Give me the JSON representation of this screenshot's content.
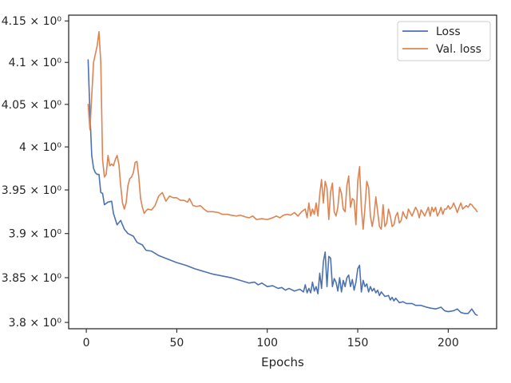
{
  "chart_data": {
    "type": "line",
    "xlabel": "Epochs",
    "ylabel": "",
    "yscale": "log",
    "xlim": [
      -9.75,
      226.75
    ],
    "ylim": [
      3.793,
      4.157
    ],
    "xticks": [
      {
        "value": 0,
        "label": "0"
      },
      {
        "value": 50,
        "label": "50"
      },
      {
        "value": 100,
        "label": "100"
      },
      {
        "value": 150,
        "label": "150"
      },
      {
        "value": 200,
        "label": "200"
      }
    ],
    "yticks": [
      {
        "value": 3.8,
        "label": "3.8 × 10⁰"
      },
      {
        "value": 3.85,
        "label": "3.85 × 10⁰"
      },
      {
        "value": 3.9,
        "label": "3.9 × 10⁰"
      },
      {
        "value": 3.95,
        "label": "3.95 × 10⁰"
      },
      {
        "value": 4.0,
        "label": "4 × 10⁰"
      },
      {
        "value": 4.05,
        "label": "4.05 × 10⁰"
      },
      {
        "value": 4.1,
        "label": "4.1 × 10⁰"
      },
      {
        "value": 4.15,
        "label": "4.15 × 10⁰"
      }
    ],
    "grid": false,
    "legend_position": "top-right",
    "series": [
      {
        "name": "Loss",
        "color": "#4c72b0",
        "points": [
          [
            1,
            4.103
          ],
          [
            2,
            4.04
          ],
          [
            3,
            3.99
          ],
          [
            4,
            3.975
          ],
          [
            5,
            3.97
          ],
          [
            6,
            3.968
          ],
          [
            7,
            3.968
          ],
          [
            8,
            3.947
          ],
          [
            9,
            3.946
          ],
          [
            10,
            3.933
          ],
          [
            12,
            3.936
          ],
          [
            14,
            3.937
          ],
          [
            15,
            3.923
          ],
          [
            17,
            3.91
          ],
          [
            19,
            3.915
          ],
          [
            21,
            3.905
          ],
          [
            23,
            3.9
          ],
          [
            26,
            3.897
          ],
          [
            28,
            3.89
          ],
          [
            31,
            3.887
          ],
          [
            33,
            3.881
          ],
          [
            36,
            3.88
          ],
          [
            40,
            3.875
          ],
          [
            45,
            3.871
          ],
          [
            50,
            3.867
          ],
          [
            55,
            3.864
          ],
          [
            60,
            3.86
          ],
          [
            65,
            3.857
          ],
          [
            70,
            3.854
          ],
          [
            75,
            3.852
          ],
          [
            80,
            3.85
          ],
          [
            85,
            3.847
          ],
          [
            90,
            3.844
          ],
          [
            93,
            3.845
          ],
          [
            95,
            3.842
          ],
          [
            97,
            3.844
          ],
          [
            100,
            3.84
          ],
          [
            103,
            3.841
          ],
          [
            106,
            3.838
          ],
          [
            108,
            3.839
          ],
          [
            110,
            3.836
          ],
          [
            112,
            3.838
          ],
          [
            115,
            3.835
          ],
          [
            118,
            3.837
          ],
          [
            120,
            3.834
          ],
          [
            121,
            3.842
          ],
          [
            122,
            3.833
          ],
          [
            123,
            3.838
          ],
          [
            124,
            3.833
          ],
          [
            125,
            3.845
          ],
          [
            126,
            3.835
          ],
          [
            127,
            3.84
          ],
          [
            128,
            3.832
          ],
          [
            129,
            3.855
          ],
          [
            130,
            3.838
          ],
          [
            131,
            3.868
          ],
          [
            132,
            3.879
          ],
          [
            133,
            3.84
          ],
          [
            134,
            3.874
          ],
          [
            135,
            3.872
          ],
          [
            136,
            3.84
          ],
          [
            137,
            3.849
          ],
          [
            138,
            3.845
          ],
          [
            139,
            3.835
          ],
          [
            140,
            3.85
          ],
          [
            141,
            3.834
          ],
          [
            142,
            3.847
          ],
          [
            143,
            3.84
          ],
          [
            144,
            3.85
          ],
          [
            145,
            3.853
          ],
          [
            146,
            3.84
          ],
          [
            147,
            3.848
          ],
          [
            148,
            3.836
          ],
          [
            149,
            3.845
          ],
          [
            150,
            3.86
          ],
          [
            151,
            3.864
          ],
          [
            152,
            3.834
          ],
          [
            153,
            3.847
          ],
          [
            154,
            3.84
          ],
          [
            155,
            3.843
          ],
          [
            156,
            3.834
          ],
          [
            157,
            3.84
          ],
          [
            158,
            3.835
          ],
          [
            159,
            3.838
          ],
          [
            160,
            3.833
          ],
          [
            161,
            3.836
          ],
          [
            162,
            3.83
          ],
          [
            163,
            3.834
          ],
          [
            165,
            3.829
          ],
          [
            167,
            3.83
          ],
          [
            168,
            3.825
          ],
          [
            169,
            3.828
          ],
          [
            170,
            3.824
          ],
          [
            171,
            3.827
          ],
          [
            173,
            3.822
          ],
          [
            175,
            3.823
          ],
          [
            177,
            3.821
          ],
          [
            180,
            3.821
          ],
          [
            182,
            3.819
          ],
          [
            185,
            3.819
          ],
          [
            188,
            3.817
          ],
          [
            190,
            3.816
          ],
          [
            193,
            3.815
          ],
          [
            196,
            3.817
          ],
          [
            198,
            3.813
          ],
          [
            200,
            3.812
          ],
          [
            203,
            3.813
          ],
          [
            205,
            3.815
          ],
          [
            207,
            3.811
          ],
          [
            209,
            3.81
          ],
          [
            211,
            3.81
          ],
          [
            213,
            3.815
          ],
          [
            214,
            3.812
          ],
          [
            215,
            3.809
          ],
          [
            216,
            3.808
          ]
        ]
      },
      {
        "name": "Val. loss",
        "color": "#dd8452",
        "points": [
          [
            1,
            4.05
          ],
          [
            2,
            4.02
          ],
          [
            3,
            4.06
          ],
          [
            4,
            4.1
          ],
          [
            5,
            4.11
          ],
          [
            6,
            4.12
          ],
          [
            7,
            4.137
          ],
          [
            8,
            4.1
          ],
          [
            9,
            3.985
          ],
          [
            10,
            3.965
          ],
          [
            11,
            3.968
          ],
          [
            12,
            3.99
          ],
          [
            13,
            3.978
          ],
          [
            14,
            3.98
          ],
          [
            15,
            3.978
          ],
          [
            16,
            3.985
          ],
          [
            17,
            3.99
          ],
          [
            18,
            3.98
          ],
          [
            19,
            3.955
          ],
          [
            20,
            3.935
          ],
          [
            21,
            3.928
          ],
          [
            22,
            3.935
          ],
          [
            23,
            3.955
          ],
          [
            24,
            3.963
          ],
          [
            25,
            3.965
          ],
          [
            26,
            3.97
          ],
          [
            27,
            3.982
          ],
          [
            28,
            3.983
          ],
          [
            29,
            3.965
          ],
          [
            30,
            3.94
          ],
          [
            31,
            3.93
          ],
          [
            32,
            3.923
          ],
          [
            33,
            3.926
          ],
          [
            34,
            3.928
          ],
          [
            36,
            3.927
          ],
          [
            38,
            3.932
          ],
          [
            40,
            3.943
          ],
          [
            42,
            3.947
          ],
          [
            44,
            3.937
          ],
          [
            46,
            3.943
          ],
          [
            48,
            3.941
          ],
          [
            50,
            3.941
          ],
          [
            52,
            3.938
          ],
          [
            54,
            3.938
          ],
          [
            56,
            3.936
          ],
          [
            57,
            3.94
          ],
          [
            59,
            3.932
          ],
          [
            61,
            3.931
          ],
          [
            63,
            3.932
          ],
          [
            65,
            3.928
          ],
          [
            67,
            3.925
          ],
          [
            70,
            3.925
          ],
          [
            73,
            3.924
          ],
          [
            75,
            3.922
          ],
          [
            78,
            3.922
          ],
          [
            80,
            3.921
          ],
          [
            83,
            3.92
          ],
          [
            85,
            3.921
          ],
          [
            88,
            3.919
          ],
          [
            90,
            3.918
          ],
          [
            92,
            3.92
          ],
          [
            94,
            3.916
          ],
          [
            97,
            3.917
          ],
          [
            100,
            3.916
          ],
          [
            103,
            3.918
          ],
          [
            105,
            3.92
          ],
          [
            107,
            3.918
          ],
          [
            109,
            3.921
          ],
          [
            111,
            3.922
          ],
          [
            113,
            3.921
          ],
          [
            115,
            3.924
          ],
          [
            117,
            3.92
          ],
          [
            119,
            3.925
          ],
          [
            121,
            3.928
          ],
          [
            122,
            3.918
          ],
          [
            123,
            3.935
          ],
          [
            124,
            3.92
          ],
          [
            125,
            3.928
          ],
          [
            126,
            3.922
          ],
          [
            127,
            3.935
          ],
          [
            128,
            3.92
          ],
          [
            129,
            3.945
          ],
          [
            130,
            3.962
          ],
          [
            131,
            3.935
          ],
          [
            132,
            3.96
          ],
          [
            133,
            3.952
          ],
          [
            134,
            3.916
          ],
          [
            135,
            3.948
          ],
          [
            136,
            3.958
          ],
          [
            137,
            3.925
          ],
          [
            138,
            3.92
          ],
          [
            139,
            3.93
          ],
          [
            140,
            3.953
          ],
          [
            141,
            3.946
          ],
          [
            142,
            3.928
          ],
          [
            143,
            3.925
          ],
          [
            144,
            3.955
          ],
          [
            145,
            3.966
          ],
          [
            146,
            3.93
          ],
          [
            147,
            3.94
          ],
          [
            148,
            3.938
          ],
          [
            149,
            3.91
          ],
          [
            150,
            3.96
          ],
          [
            151,
            3.977
          ],
          [
            152,
            3.93
          ],
          [
            153,
            3.905
          ],
          [
            154,
            3.93
          ],
          [
            155,
            3.96
          ],
          [
            156,
            3.953
          ],
          [
            157,
            3.92
          ],
          [
            158,
            3.908
          ],
          [
            159,
            3.92
          ],
          [
            160,
            3.942
          ],
          [
            161,
            3.925
          ],
          [
            162,
            3.908
          ],
          [
            163,
            3.905
          ],
          [
            164,
            3.933
          ],
          [
            165,
            3.908
          ],
          [
            166,
            3.912
          ],
          [
            167,
            3.928
          ],
          [
            168,
            3.92
          ],
          [
            169,
            3.908
          ],
          [
            170,
            3.91
          ],
          [
            171,
            3.92
          ],
          [
            172,
            3.924
          ],
          [
            173,
            3.912
          ],
          [
            174,
            3.915
          ],
          [
            175,
            3.925
          ],
          [
            176,
            3.92
          ],
          [
            177,
            3.917
          ],
          [
            178,
            3.928
          ],
          [
            179,
            3.924
          ],
          [
            180,
            3.92
          ],
          [
            181,
            3.925
          ],
          [
            182,
            3.93
          ],
          [
            183,
            3.926
          ],
          [
            184,
            3.918
          ],
          [
            185,
            3.927
          ],
          [
            186,
            3.924
          ],
          [
            187,
            3.92
          ],
          [
            188,
            3.925
          ],
          [
            189,
            3.93
          ],
          [
            190,
            3.92
          ],
          [
            191,
            3.93
          ],
          [
            192,
            3.925
          ],
          [
            193,
            3.93
          ],
          [
            194,
            3.92
          ],
          [
            195,
            3.924
          ],
          [
            196,
            3.93
          ],
          [
            197,
            3.922
          ],
          [
            198,
            3.928
          ],
          [
            199,
            3.928
          ],
          [
            200,
            3.932
          ],
          [
            201,
            3.928
          ],
          [
            202,
            3.93
          ],
          [
            203,
            3.935
          ],
          [
            204,
            3.93
          ],
          [
            205,
            3.924
          ],
          [
            206,
            3.93
          ],
          [
            207,
            3.935
          ],
          [
            208,
            3.928
          ],
          [
            209,
            3.93
          ],
          [
            210,
            3.932
          ],
          [
            211,
            3.93
          ],
          [
            212,
            3.934
          ],
          [
            213,
            3.933
          ],
          [
            214,
            3.93
          ],
          [
            215,
            3.928
          ],
          [
            216,
            3.925
          ]
        ]
      }
    ]
  }
}
